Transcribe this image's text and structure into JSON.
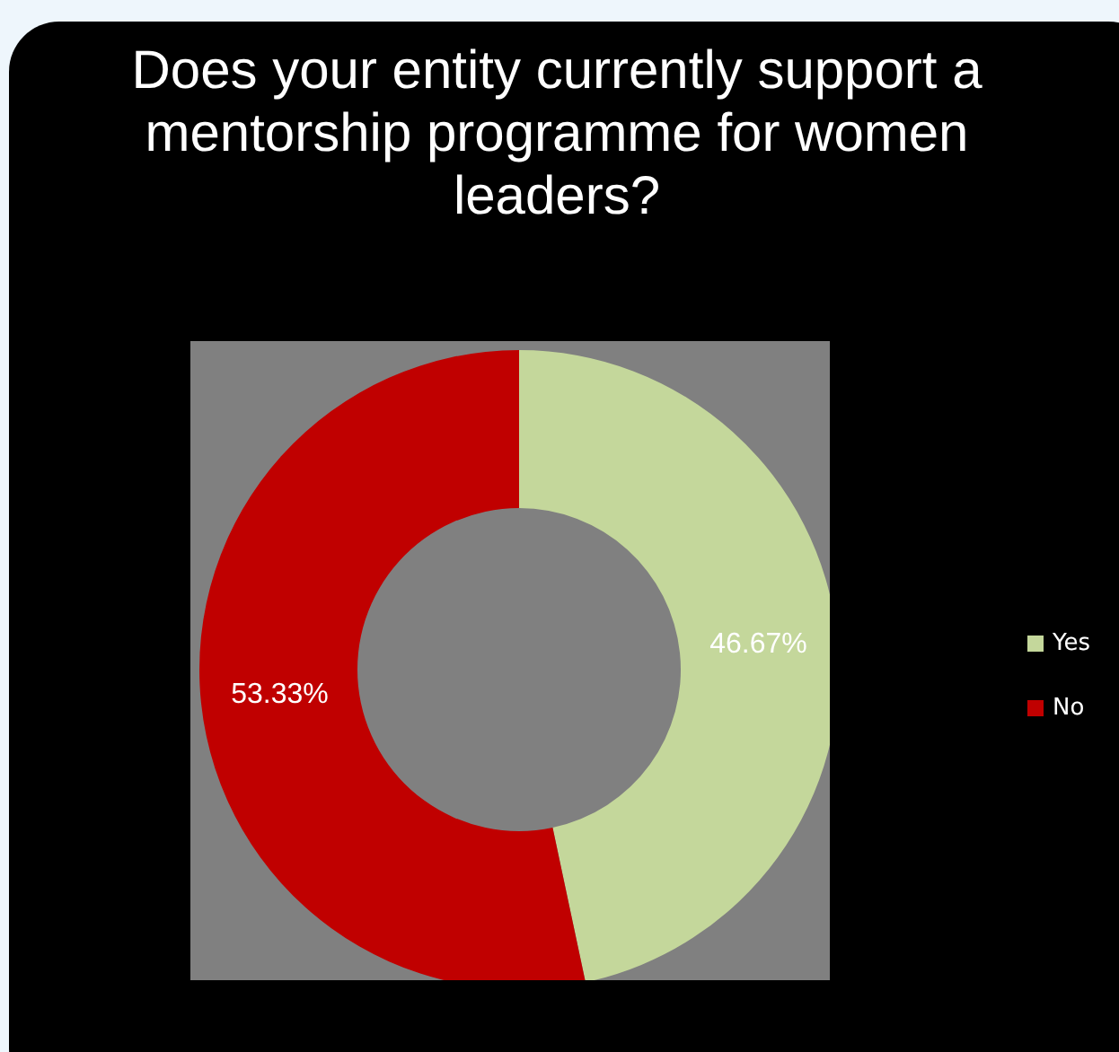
{
  "chart_data": {
    "type": "donut",
    "title": "Does your entity currently support a mentorship programme for women leaders?",
    "categories": [
      "Yes",
      "No"
    ],
    "values": [
      46.67,
      53.33
    ],
    "colors": [
      "#c4d79b",
      "#c00000"
    ],
    "value_labels": [
      "46.67%",
      "53.33%"
    ],
    "legend": "right"
  }
}
